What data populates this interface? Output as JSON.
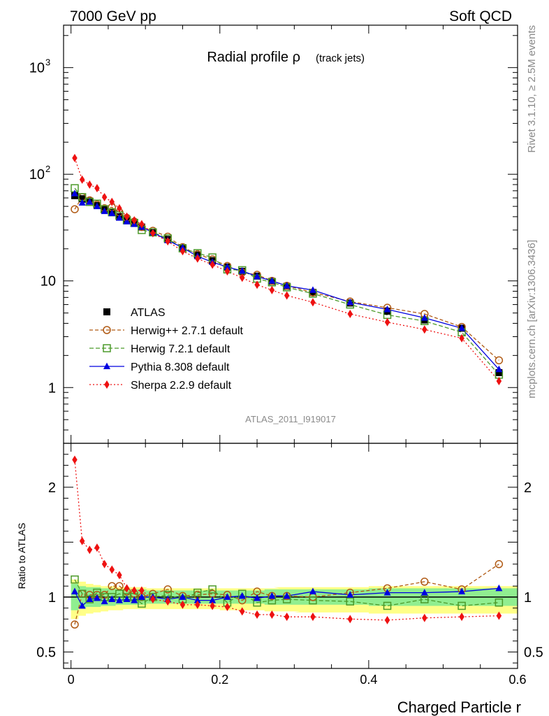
{
  "header": {
    "left": "7000 GeV pp",
    "right": "Soft QCD"
  },
  "side_labels": {
    "rivet": "Rivet 3.1.10, ≥ 2.5M events",
    "mcplots": "mcplots.cern.ch [arXiv:1306.3436]"
  },
  "chart_data": [
    {
      "type": "line",
      "title": "Radial profile ρ",
      "subtitle": "(track jets)",
      "watermark": "ATLAS_2011_I919017",
      "xlabel": "Charged Particle r",
      "ylabel": "",
      "yscale": "log",
      "xlim": [
        -0.01,
        0.6
      ],
      "ylim": [
        0.3,
        2500
      ],
      "yticks": [
        {
          "v": 1000,
          "base": "10",
          "exp": "3"
        },
        {
          "v": 100,
          "base": "10",
          "exp": "2"
        },
        {
          "v": 10,
          "base": "10",
          "exp": ""
        },
        {
          "v": 1,
          "base": "1",
          "exp": ""
        }
      ],
      "legend_position": "middle-left",
      "x": [
        0.005,
        0.015,
        0.025,
        0.035,
        0.045,
        0.055,
        0.065,
        0.075,
        0.085,
        0.095,
        0.11,
        0.13,
        0.15,
        0.17,
        0.19,
        0.21,
        0.23,
        0.25,
        0.27,
        0.29,
        0.325,
        0.375,
        0.425,
        0.475,
        0.525,
        0.575
      ],
      "series": [
        {
          "name": "ATLAS",
          "color": "#000000",
          "marker": "square-filled",
          "dash": "",
          "values": [
            63,
            59,
            56,
            51,
            47,
            44,
            40,
            37,
            35,
            32,
            28.5,
            24.5,
            20.5,
            17.5,
            15.5,
            13.5,
            12.3,
            11.1,
            9.9,
            8.9,
            7.8,
            6.2,
            5.2,
            4.3,
            3.6,
            1.38
          ]
        },
        {
          "name": "Herwig++ 2.7.1 default",
          "color": "#b05a14",
          "marker": "circle-open",
          "dash": "5,3",
          "values": [
            47,
            61,
            57,
            52,
            48,
            49,
            44,
            39,
            36,
            32,
            29.5,
            26,
            20.7,
            17.8,
            15.9,
            13.8,
            12.0,
            11.4,
            10.0,
            9.0,
            7.8,
            6.4,
            5.6,
            4.9,
            3.7,
            1.8
          ]
        },
        {
          "name": "Herwig 7.2.1 default",
          "color": "#4c9a2a",
          "marker": "square-open",
          "dash": "6,3",
          "values": [
            74,
            61,
            55,
            53,
            47,
            44,
            41,
            37,
            35,
            30,
            28.5,
            25,
            20.2,
            18.2,
            16.6,
            12.8,
            12.6,
            10.5,
            9.7,
            8.7,
            7.6,
            6.0,
            4.8,
            4.2,
            3.3,
            1.32
          ]
        },
        {
          "name": "Pythia 8.308 default",
          "color": "#0000e0",
          "marker": "triangle-filled",
          "dash": "",
          "values": [
            66,
            54,
            55,
            50,
            45,
            43,
            39,
            36,
            34,
            32,
            28.5,
            24,
            20.5,
            17,
            15,
            13.5,
            12.4,
            11,
            10,
            9,
            8.2,
            6.3,
            5.4,
            4.5,
            3.6,
            1.48
          ]
        },
        {
          "name": "Sherpa 2.2.9 default",
          "color": "#ee1111",
          "marker": "diamond-filled",
          "dash": "2,3",
          "values": [
            142,
            89,
            80,
            74,
            61,
            55,
            48,
            40,
            37,
            34,
            28,
            23.5,
            19,
            16.2,
            14.2,
            12.3,
            10.7,
            9.2,
            8.2,
            7.3,
            6.3,
            4.9,
            4.1,
            3.5,
            2.9,
            1.15
          ]
        }
      ]
    },
    {
      "type": "line",
      "xlabel": "Charged Particle r",
      "ylabel": "Ratio to ATLAS",
      "xlim": [
        -0.01,
        0.6
      ],
      "ylim": [
        0.35,
        2.4
      ],
      "xticks": [
        "0",
        "0.2",
        "0.4",
        "0.6"
      ],
      "yticks": [
        "0.5",
        "1",
        "2"
      ],
      "x": [
        0.005,
        0.015,
        0.025,
        0.035,
        0.045,
        0.055,
        0.065,
        0.075,
        0.085,
        0.095,
        0.11,
        0.13,
        0.15,
        0.17,
        0.19,
        0.21,
        0.23,
        0.25,
        0.27,
        0.29,
        0.325,
        0.375,
        0.425,
        0.475,
        0.525,
        0.575
      ],
      "band_inner": {
        "color": "#90ee90",
        "low": [
          0.88,
          0.9,
          0.91,
          0.91,
          0.92,
          0.92,
          0.93,
          0.93,
          0.93,
          0.93,
          0.94,
          0.94,
          0.94,
          0.94,
          0.94,
          0.94,
          0.94,
          0.94,
          0.93,
          0.93,
          0.93,
          0.93,
          0.92,
          0.92,
          0.92,
          0.92
        ],
        "high": [
          1.12,
          1.1,
          1.09,
          1.09,
          1.08,
          1.08,
          1.07,
          1.07,
          1.07,
          1.07,
          1.06,
          1.06,
          1.06,
          1.06,
          1.06,
          1.06,
          1.06,
          1.06,
          1.07,
          1.07,
          1.07,
          1.07,
          1.08,
          1.08,
          1.08,
          1.08
        ]
      },
      "band_outer": {
        "color": "#ffff88",
        "low": [
          0.8,
          0.83,
          0.85,
          0.86,
          0.87,
          0.88,
          0.88,
          0.89,
          0.89,
          0.89,
          0.89,
          0.89,
          0.89,
          0.89,
          0.89,
          0.88,
          0.88,
          0.88,
          0.87,
          0.87,
          0.86,
          0.86,
          0.85,
          0.85,
          0.85,
          0.85
        ],
        "high": [
          1.16,
          1.14,
          1.12,
          1.11,
          1.1,
          1.1,
          1.09,
          1.09,
          1.09,
          1.09,
          1.08,
          1.08,
          1.08,
          1.08,
          1.08,
          1.08,
          1.08,
          1.08,
          1.08,
          1.09,
          1.09,
          1.09,
          1.1,
          1.1,
          1.1,
          1.1
        ]
      },
      "series": [
        {
          "name": "Herwig++ 2.7.1 default",
          "color": "#b05a14",
          "marker": "circle-open",
          "dash": "5,3",
          "values": [
            0.75,
            1.03,
            1.02,
            1.02,
            1.02,
            1.1,
            1.1,
            1.05,
            1.03,
            1.0,
            1.03,
            1.07,
            1.01,
            1.02,
            1.03,
            1.02,
            0.97,
            1.05,
            1.01,
            1.01,
            1.0,
            1.04,
            1.08,
            1.14,
            1.07,
            1.3
          ]
        },
        {
          "name": "Herwig 7.2.1 default",
          "color": "#4c9a2a",
          "marker": "square-open",
          "dash": "6,3",
          "values": [
            1.16,
            1.03,
            0.98,
            1.04,
            1.0,
            1.0,
            1.03,
            1.0,
            1.0,
            0.94,
            1.0,
            1.02,
            0.98,
            1.04,
            1.07,
            0.95,
            1.03,
            0.95,
            0.97,
            0.98,
            0.97,
            0.96,
            0.92,
            0.98,
            0.92,
            0.95
          ]
        },
        {
          "name": "Pythia 8.308 default",
          "color": "#0000e0",
          "marker": "triangle-filled",
          "dash": "",
          "values": [
            1.05,
            0.92,
            0.98,
            0.99,
            0.96,
            0.98,
            0.97,
            0.98,
            0.97,
            1.0,
            1.0,
            0.98,
            1.0,
            0.97,
            0.97,
            1.0,
            1.01,
            0.99,
            1.01,
            1.01,
            1.05,
            1.02,
            1.04,
            1.04,
            1.05,
            1.08
          ]
        },
        {
          "name": "Sherpa 2.2.9 default",
          "color": "#ee1111",
          "marker": "diamond-filled",
          "dash": "2,3",
          "values": [
            2.25,
            1.51,
            1.43,
            1.45,
            1.3,
            1.25,
            1.2,
            1.08,
            1.06,
            1.06,
            0.98,
            0.96,
            0.93,
            0.93,
            0.92,
            0.91,
            0.87,
            0.84,
            0.84,
            0.82,
            0.82,
            0.8,
            0.79,
            0.81,
            0.82,
            0.83
          ]
        }
      ]
    }
  ]
}
